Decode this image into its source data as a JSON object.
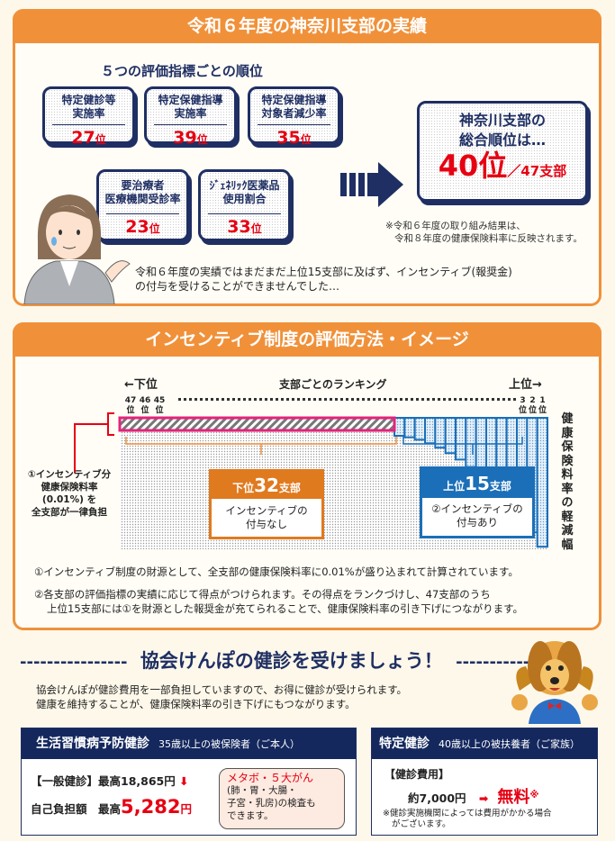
{
  "section1": {
    "title": "令和６年度の神奈川支部の実績",
    "subtitle": "５つの評価指標ごとの順位",
    "indicators": [
      {
        "label1": "特定健診等",
        "label2": "実施率",
        "rank": "27",
        "unit": "位"
      },
      {
        "label1": "特定保健指導",
        "label2": "実施率",
        "rank": "39",
        "unit": "位"
      },
      {
        "label1": "特定保健指導",
        "label2": "対象者減少率",
        "rank": "35",
        "unit": "位"
      },
      {
        "label1": "要治療者",
        "label2": "医療機関受診率",
        "rank": "23",
        "unit": "位"
      },
      {
        "label1": "ｼﾞｪﾈﾘｯｸ医薬品",
        "label2": "使用割合",
        "rank": "33",
        "unit": "位"
      }
    ],
    "overall": {
      "line1": "神奈川支部の",
      "line2": "総合順位は…",
      "rank": "40位",
      "total": "／47支部"
    },
    "note1": "※令和６年度の取り組み結果は、",
    "note2": "令和８年度の健康保険料率に反映されます。",
    "comment1": "令和６年度の実績ではまだまだ上位15支部に及ばず、インセンティブ(報奨金)",
    "comment2": "の付与を受けることができませんでした…"
  },
  "section2": {
    "title": "インセンティブ制度の評価方法・イメージ",
    "lower": "←下位",
    "chart_title": "支部ごとのランキング",
    "upper": "上位→",
    "low_ranks": [
      "47位",
      "46位",
      "45位"
    ],
    "top_ranks": [
      "3位",
      "2位",
      "1位"
    ],
    "left_note": [
      "①インセンティブ分",
      "健康保険料率",
      "(0.01%) を",
      "全支部が一律負担"
    ],
    "vertical_label": "健康保険料率の軽減幅",
    "lower_box": {
      "head_a": "下位",
      "head_num": "32",
      "head_b": "支部",
      "body1": "インセンティブの",
      "body2": "付与なし"
    },
    "upper_box": {
      "head_a": "上位",
      "head_num": "15",
      "head_b": "支部",
      "body1": "②インセンティブの",
      "body2": "付与あり"
    },
    "note1": "①インセンティブ制度の財源として、全支部の健康保険料率に0.01%が盛り込まれて計算されています。",
    "note2a": "②各支部の評価指標の実績に応じて得点がつけられます。その得点をランクづけし、47支部のうち",
    "note2b": "上位15支部には①を財源とした報奨金が充てられることで、健康保険料率の引き下げにつながります。"
  },
  "section3": {
    "title": "協会けんぽの健診を受けましょう！",
    "dashes": "----------------",
    "text1": "協会けんぽが健診費用を一部負担していますので、お得に健診が受けられます。",
    "text2": "健康を維持することが、健康保険料率の引き下げにもつながります。",
    "left": {
      "title": "生活習慣病予防健診",
      "target": "35歳以上の被保険者（ご本人）",
      "general": "【一般健診】最高18,865円",
      "self_label": "自己負担額　最高",
      "self_value": "5,282",
      "yen": "円",
      "bubble_title": "メタボ・５大がん",
      "bubble1": "(肺・胃・大腸・",
      "bubble2": "子宮・乳房)の検査も",
      "bubble3": "できます。"
    },
    "right": {
      "title": "特定健診",
      "target": "40歳以上の被扶養者（ご家族）",
      "cost_label": "【健診費用】",
      "cost": "約7,000円",
      "free": "無料",
      "mark": "※",
      "note1": "※健診実施機関によっては費用がかかる場合",
      "note2": "がございます。"
    }
  },
  "colors": {
    "orange": "#f0913a",
    "navy": "#1f2f63",
    "red": "#e60012",
    "blue": "#1b6fb8",
    "pink": "#e4237b"
  }
}
